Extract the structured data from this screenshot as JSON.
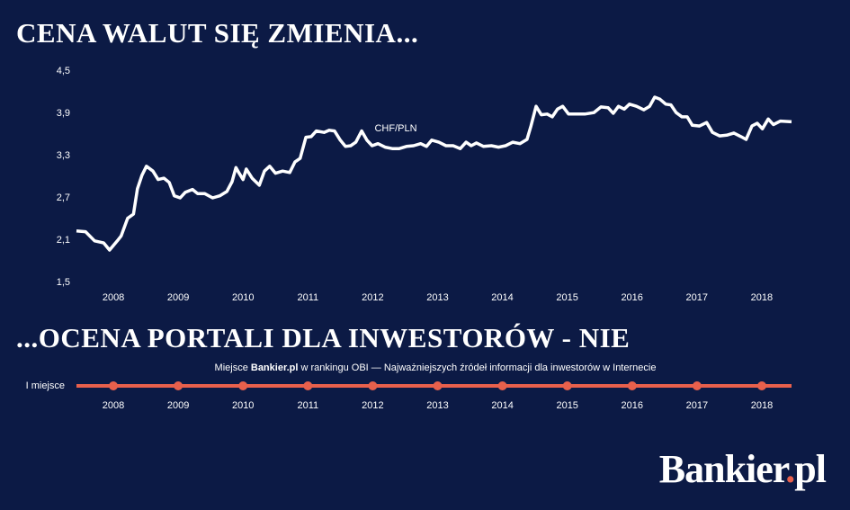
{
  "chart_data": [
    {
      "type": "line",
      "title": "CENA WALUT SIĘ ZMIENIA...",
      "x": [
        2007.43,
        2007.57,
        2007.71,
        2007.85,
        2007.94,
        2008.06,
        2008.12,
        2008.22,
        2008.31,
        2008.37,
        2008.44,
        2008.51,
        2008.61,
        2008.69,
        2008.78,
        2008.86,
        2008.94,
        2009.03,
        2009.11,
        2009.22,
        2009.3,
        2009.41,
        2009.53,
        2009.64,
        2009.75,
        2009.83,
        2009.89,
        2009.94,
        2010.0,
        2010.05,
        2010.14,
        2010.25,
        2010.33,
        2010.41,
        2010.5,
        2010.61,
        2010.72,
        2010.8,
        2010.88,
        2010.97,
        2011.05,
        2011.13,
        2011.25,
        2011.33,
        2011.41,
        2011.5,
        2011.58,
        2011.66,
        2011.74,
        2011.83,
        2011.91,
        2011.99,
        2012.08,
        2012.19,
        2012.3,
        2012.41,
        2012.52,
        2012.63,
        2012.74,
        2012.83,
        2012.91,
        2013.02,
        2013.13,
        2013.24,
        2013.35,
        2013.44,
        2013.52,
        2013.6,
        2013.71,
        2013.83,
        2013.94,
        2014.05,
        2014.16,
        2014.27,
        2014.38,
        2014.44,
        2014.52,
        2014.6,
        2014.69,
        2014.77,
        2014.85,
        2014.93,
        2015.02,
        2015.13,
        2015.27,
        2015.41,
        2015.52,
        2015.63,
        2015.71,
        2015.79,
        2015.88,
        2015.96,
        2016.07,
        2016.18,
        2016.27,
        2016.35,
        2016.43,
        2016.52,
        2016.6,
        2016.68,
        2016.77,
        2016.85,
        2016.93,
        2017.04,
        2017.15,
        2017.24,
        2017.35,
        2017.46,
        2017.57,
        2017.68,
        2017.76,
        2017.85,
        2017.93,
        2018.01,
        2018.1,
        2018.18,
        2018.29,
        2018.46
      ],
      "series": [
        {
          "name": "CHF/PLN",
          "color": "#ffffff",
          "values": [
            2.23,
            2.22,
            2.09,
            2.06,
            1.96,
            2.09,
            2.16,
            2.41,
            2.47,
            2.83,
            3.02,
            3.15,
            3.08,
            2.96,
            2.98,
            2.92,
            2.73,
            2.7,
            2.78,
            2.82,
            2.76,
            2.76,
            2.7,
            2.73,
            2.79,
            2.93,
            3.13,
            3.05,
            2.96,
            3.11,
            2.98,
            2.88,
            3.08,
            3.15,
            3.05,
            3.08,
            3.06,
            3.21,
            3.26,
            3.56,
            3.57,
            3.65,
            3.63,
            3.66,
            3.65,
            3.52,
            3.43,
            3.44,
            3.49,
            3.65,
            3.52,
            3.44,
            3.47,
            3.42,
            3.4,
            3.4,
            3.43,
            3.44,
            3.47,
            3.43,
            3.52,
            3.49,
            3.44,
            3.44,
            3.4,
            3.49,
            3.44,
            3.48,
            3.43,
            3.44,
            3.42,
            3.44,
            3.49,
            3.47,
            3.53,
            3.72,
            4.0,
            3.88,
            3.89,
            3.85,
            3.96,
            4.0,
            3.89,
            3.89,
            3.89,
            3.91,
            3.99,
            3.98,
            3.9,
            4.0,
            3.96,
            4.03,
            4.0,
            3.95,
            4.0,
            4.13,
            4.1,
            4.03,
            4.02,
            3.91,
            3.85,
            3.85,
            3.73,
            3.72,
            3.77,
            3.63,
            3.58,
            3.59,
            3.62,
            3.57,
            3.53,
            3.72,
            3.76,
            3.68,
            3.82,
            3.74,
            3.79,
            3.78
          ]
        }
      ],
      "xlim": [
        2007.43,
        2018.46
      ],
      "xticks": [
        2008,
        2009,
        2010,
        2011,
        2012,
        2013,
        2014,
        2015,
        2016,
        2017,
        2018
      ],
      "ylim": [
        1.5,
        4.5
      ],
      "yticks": [
        {
          "value": 1.5,
          "label": "1,5"
        },
        {
          "value": 2.1,
          "label": "2,1"
        },
        {
          "value": 2.7,
          "label": "2,7"
        },
        {
          "value": 3.3,
          "label": "3,3"
        },
        {
          "value": 3.9,
          "label": "3,9"
        },
        {
          "value": 4.5,
          "label": "4,5"
        }
      ],
      "grid": false
    },
    {
      "type": "timeline",
      "title": "...OCENA PORTALI DLA INWESTORÓW - NIE",
      "subtitle": [
        "Miejsce ",
        "Bankier.pl",
        " w rankingu OBI — Najważniejszych źródeł informacji dla inwestorów w Internecie"
      ],
      "categories": [
        "2008",
        "2009",
        "2010",
        "2011",
        "2012",
        "2013",
        "2014",
        "2015",
        "2016",
        "2017",
        "2018"
      ],
      "values": [
        1,
        1,
        1,
        1,
        1,
        1,
        1,
        1,
        1,
        1,
        1
      ],
      "yticks": [
        {
          "value": 1,
          "label": "I miejsce"
        }
      ],
      "color": "#e8604c"
    }
  ],
  "brand": [
    "Bankier",
    ".",
    "pl"
  ]
}
